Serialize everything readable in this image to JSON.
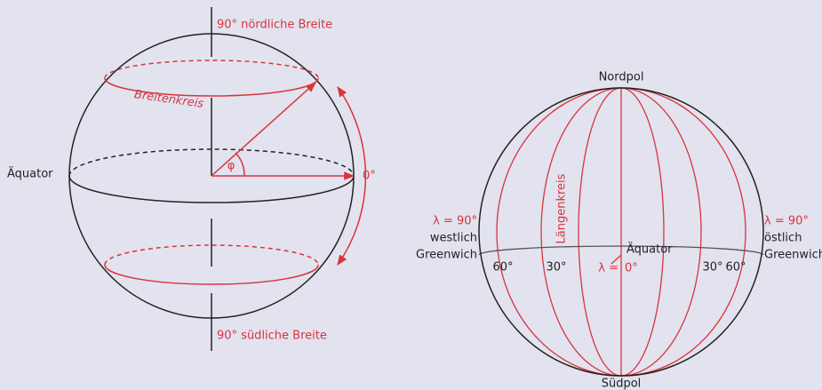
{
  "left": {
    "north_label": "90° nördliche Breite",
    "south_label": "90° südliche Breite",
    "equator_label": "Äquator",
    "parallel_label": "Breitenkreis",
    "angle_label": "φ",
    "zero_label": "0°"
  },
  "right": {
    "north_pole": "Nordpol",
    "south_pole": "Südpol",
    "meridian_label": "Längenkreis",
    "equator_label": "Äquator",
    "west": [
      "λ = 90°",
      "westlich",
      "Greenwich"
    ],
    "east": [
      "λ = 90°",
      "östlich",
      "Greenwich"
    ],
    "lambda_prefix": "λ =",
    "lambda_zero": "0°",
    "west_60": "60°",
    "west_30": "30°",
    "east_30": "30°",
    "east_60": "60°"
  }
}
